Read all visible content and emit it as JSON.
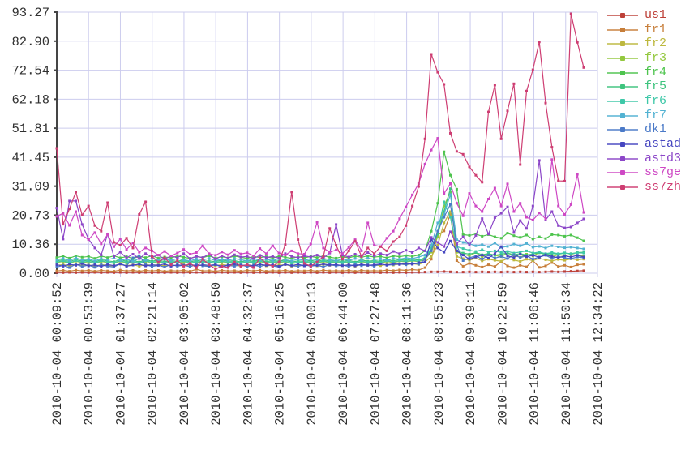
{
  "style": {
    "background": "#ffffff",
    "grid_color": "#ccccee",
    "axis_color": "#454545",
    "tick_text_color": "#303030"
  },
  "chart_data": {
    "type": "line",
    "title": "",
    "grid": true,
    "legend_position": "right-top",
    "n_points": 84,
    "x_axis": {
      "label": "",
      "tick_labels": [
        "2010-10-04 00:09:52",
        "2010-10-04 00:53:39",
        "2010-10-04 01:37:27",
        "2010-10-04 02:21:14",
        "2010-10-04 03:05:02",
        "2010-10-04 03:48:50",
        "2010-10-04 04:32:37",
        "2010-10-04 05:16:25",
        "2010-10-04 06:00:13",
        "2010-10-04 06:44:00",
        "2010-10-04 07:27:48",
        "2010-10-04 08:11:36",
        "2010-10-04 08:55:23",
        "2010-10-04 09:39:11",
        "2010-10-04 10:22:59",
        "2010-10-04 11:06:46",
        "2010-10-04 11:50:34",
        "2010-10-04 12:34:22"
      ]
    },
    "y_axis": {
      "label": "",
      "ylim": [
        0,
        93.27
      ],
      "tick_values": [
        0,
        10.36,
        20.73,
        31.09,
        41.45,
        51.81,
        62.18,
        72.54,
        82.9,
        93.27
      ],
      "tick_labels": [
        "0.00",
        "10.36",
        "20.73",
        "31.09",
        "41.45",
        "51.81",
        "62.18",
        "72.54",
        "82.90",
        "93.27"
      ]
    },
    "series": [
      {
        "name": "us1",
        "color": "#bd4038",
        "values": [
          0.3,
          0.2,
          0.3,
          0.2,
          0.3,
          0.2,
          0.3,
          0.2,
          0.3,
          0.2,
          0.3,
          0.2,
          0.3,
          0.2,
          0.3,
          0.2,
          0.3,
          0.2,
          0.3,
          0.2,
          0.3,
          0.2,
          0.3,
          0.2,
          0.3,
          0.2,
          0.3,
          0.2,
          0.3,
          0.2,
          0.3,
          0.2,
          0.3,
          0.2,
          0.3,
          0.2,
          0.3,
          0.2,
          0.3,
          0.2,
          0.3,
          0.2,
          0.3,
          0.2,
          0.3,
          0.2,
          0.3,
          0.2,
          0.3,
          0.2,
          0.3,
          0.2,
          0.3,
          0.2,
          0.3,
          0.2,
          0.3,
          0.3,
          0.4,
          0.5,
          0.5,
          0.6,
          0.5,
          0.4,
          0.4,
          0.5,
          0.4,
          0.5,
          0.4,
          0.5,
          0.4,
          0.5,
          0.4,
          0.5,
          0.4,
          0.5,
          0.4,
          0.5,
          0.6,
          0.5,
          0.6,
          0.7,
          0.8,
          0.9
        ]
      },
      {
        "name": "fr1",
        "color": "#c77e3a",
        "values": [
          0.8,
          1.0,
          0.7,
          1.1,
          0.8,
          1.0,
          0.7,
          1.0,
          0.8,
          0.7,
          1.1,
          0.8,
          1.0,
          0.7,
          1.0,
          0.8,
          1.0,
          0.7,
          0.9,
          0.8,
          1.0,
          0.7,
          1.4,
          0.8,
          0.9,
          0.7,
          1.0,
          0.8,
          0.9,
          0.7,
          1.0,
          0.8,
          1.1,
          0.7,
          0.9,
          0.8,
          1.0,
          0.7,
          0.9,
          0.8,
          1.0,
          0.7,
          1.1,
          0.8,
          0.9,
          0.8,
          1.0,
          0.7,
          1.0,
          0.8,
          0.9,
          0.8,
          1.1,
          0.9,
          1.2,
          1.0,
          1.3,
          1.1,
          2.0,
          5.0,
          13.6,
          15.1,
          21.0,
          4.5,
          2.5,
          3.5,
          2.8,
          2.2,
          3.0,
          2.4,
          4.2,
          2.6,
          2.0,
          2.8,
          2.3,
          4.5,
          2.1,
          2.6,
          3.8,
          2.4,
          2.8,
          2.2,
          3.0,
          3.2
        ]
      },
      {
        "name": "fr2",
        "color": "#bdb83e",
        "values": [
          2.8,
          3.1,
          2.6,
          3.2,
          2.7,
          3.0,
          2.5,
          3.1,
          2.8,
          2.6,
          3.2,
          2.7,
          3.0,
          2.5,
          3.1,
          2.8,
          3.0,
          2.6,
          2.9,
          2.7,
          3.1,
          2.5,
          3.0,
          2.7,
          2.9,
          2.6,
          3.1,
          2.8,
          2.9,
          2.5,
          3.0,
          2.7,
          3.2,
          2.6,
          2.9,
          2.8,
          3.1,
          2.5,
          2.8,
          2.7,
          3.0,
          2.6,
          3.2,
          2.8,
          2.9,
          2.7,
          3.0,
          2.5,
          3.1,
          2.8,
          2.9,
          2.7,
          3.2,
          2.9,
          3.3,
          3.0,
          3.4,
          3.1,
          4.0,
          6.0,
          10.0,
          18.0,
          22.0,
          6.0,
          5.2,
          4.6,
          5.4,
          4.4,
          5.0,
          4.6,
          4.3,
          5.2,
          4.7,
          4.2,
          5.0,
          4.5,
          5.3,
          4.8,
          4.4,
          4.9,
          4.6,
          5.1,
          4.8,
          5.0
        ]
      },
      {
        "name": "fr3",
        "color": "#93c83e",
        "values": [
          3.8,
          4.2,
          3.5,
          4.3,
          3.7,
          4.1,
          3.4,
          4.2,
          3.8,
          3.5,
          4.3,
          3.6,
          4.0,
          3.4,
          4.2,
          3.7,
          4.1,
          3.5,
          3.9,
          3.6,
          4.2,
          3.4,
          4.0,
          3.6,
          3.8,
          3.5,
          4.1,
          3.7,
          3.9,
          3.4,
          4.0,
          3.6,
          4.2,
          3.5,
          3.9,
          3.7,
          4.1,
          3.4,
          3.8,
          3.6,
          4.0,
          3.5,
          4.2,
          3.7,
          3.9,
          3.6,
          4.0,
          3.4,
          4.1,
          3.7,
          3.9,
          3.6,
          4.2,
          3.8,
          4.3,
          4.0,
          4.4,
          4.1,
          5.0,
          7.5,
          13.0,
          24.0,
          29.0,
          7.5,
          6.8,
          6.2,
          7.4,
          5.8,
          7.0,
          6.4,
          5.9,
          7.2,
          6.3,
          5.7,
          6.8,
          6.1,
          7.4,
          6.6,
          5.9,
          6.6,
          6.3,
          6.7,
          6.4,
          6.1
        ]
      },
      {
        "name": "fr4",
        "color": "#4ec44e",
        "values": [
          5.6,
          6.1,
          5.4,
          6.2,
          5.7,
          6.0,
          5.3,
          6.1,
          5.6,
          6.2,
          5.5,
          5.9,
          5.3,
          6.0,
          5.6,
          6.2,
          5.4,
          5.8,
          5.5,
          6.1,
          5.7,
          5.3,
          6.0,
          5.6,
          6.2,
          5.4,
          5.9,
          5.5,
          6.1,
          5.7,
          5.3,
          6.0,
          5.6,
          5.9,
          5.4,
          6.1,
          5.7,
          5.3,
          5.9,
          5.5,
          6.0,
          5.6,
          6.2,
          5.7,
          5.4,
          5.9,
          5.5,
          6.1,
          5.7,
          6.2,
          5.8,
          6.0,
          5.5,
          6.2,
          5.9,
          6.3,
          6.0,
          6.5,
          8.0,
          15.0,
          25.0,
          43.4,
          35.0,
          30.0,
          13.8,
          13.5,
          14.0,
          13.2,
          13.8,
          13.0,
          12.5,
          14.3,
          13.4,
          12.8,
          13.6,
          12.2,
          13.0,
          12.4,
          13.8,
          13.6,
          13.2,
          13.6,
          12.7,
          11.6
        ]
      },
      {
        "name": "fr5",
        "color": "#3ec47e",
        "values": [
          4.4,
          4.8,
          4.1,
          4.9,
          4.3,
          4.7,
          4.0,
          4.8,
          4.4,
          4.1,
          4.9,
          4.2,
          4.6,
          4.0,
          4.8,
          4.3,
          4.7,
          4.1,
          4.5,
          4.2,
          4.8,
          4.0,
          4.6,
          4.2,
          4.4,
          4.1,
          4.7,
          4.3,
          4.5,
          4.0,
          4.6,
          4.2,
          4.8,
          4.1,
          4.5,
          4.3,
          4.7,
          4.0,
          4.4,
          4.2,
          4.6,
          4.1,
          4.8,
          4.3,
          4.5,
          4.2,
          4.6,
          4.0,
          4.7,
          4.3,
          4.5,
          4.2,
          4.8,
          4.4,
          4.9,
          4.6,
          5.0,
          4.7,
          5.5,
          8.5,
          14.0,
          22.0,
          30.2,
          8.0,
          7.2,
          6.8,
          7.4,
          6.6,
          7.0,
          6.4,
          6.8,
          7.2,
          6.6,
          7.0,
          6.5,
          6.9,
          7.3,
          6.7,
          7.1,
          6.8,
          7.2,
          7.0,
          7.4,
          7.5
        ]
      },
      {
        "name": "fr6",
        "color": "#3ec8a8",
        "values": [
          4.0,
          4.4,
          3.7,
          4.5,
          3.9,
          4.3,
          3.6,
          4.4,
          4.0,
          3.7,
          4.5,
          3.8,
          4.2,
          3.6,
          4.4,
          3.9,
          4.3,
          3.7,
          4.1,
          3.8,
          4.4,
          3.6,
          4.2,
          3.8,
          4.0,
          3.7,
          4.3,
          3.9,
          4.1,
          3.6,
          4.2,
          3.8,
          4.4,
          3.7,
          4.1,
          3.9,
          4.3,
          3.6,
          4.0,
          3.8,
          4.2,
          3.7,
          4.4,
          3.9,
          4.1,
          3.8,
          4.2,
          3.6,
          4.3,
          3.9,
          4.1,
          3.8,
          4.4,
          4.0,
          4.5,
          4.2,
          4.6,
          4.3,
          5.5,
          9.0,
          15.0,
          25.5,
          20.0,
          9.5,
          8.8,
          8.2,
          7.8,
          8.4,
          7.6,
          8.0,
          7.4,
          7.8,
          7.2,
          7.6,
          8.0,
          7.2,
          7.6,
          7.0,
          7.4,
          7.0,
          7.3,
          6.9,
          7.3,
          7.2
        ]
      },
      {
        "name": "fr7",
        "color": "#52b2d2",
        "values": [
          4.8,
          5.3,
          4.5,
          5.5,
          4.7,
          5.1,
          4.4,
          5.2,
          4.8,
          5.4,
          4.6,
          5.0,
          4.3,
          5.2,
          4.7,
          5.3,
          4.5,
          5.0,
          4.6,
          5.2,
          4.8,
          4.4,
          5.1,
          4.7,
          5.3,
          4.5,
          5.0,
          4.6,
          5.2,
          4.8,
          4.4,
          5.1,
          4.7,
          5.0,
          4.5,
          5.2,
          4.8,
          4.4,
          5.0,
          4.6,
          5.1,
          4.7,
          5.3,
          4.8,
          4.5,
          5.0,
          4.6,
          5.2,
          4.8,
          5.4,
          4.9,
          5.1,
          4.6,
          5.3,
          5.0,
          5.5,
          5.2,
          5.8,
          6.5,
          10.0,
          18.0,
          21.0,
          28.1,
          12.0,
          11.0,
          10.5,
          9.8,
          10.2,
          9.5,
          10.8,
          9.2,
          9.6,
          10.4,
          9.8,
          10.6,
          9.3,
          9.6,
          9.0,
          9.8,
          9.4,
          9.1,
          9.3,
          9.0,
          8.7
        ]
      },
      {
        "name": "dk1",
        "color": "#4b7ac8",
        "values": [
          2.2,
          2.8,
          2.0,
          3.2,
          2.4,
          2.9,
          2.1,
          3.0,
          2.5,
          2.2,
          3.4,
          2.6,
          5.5,
          6.3,
          3.0,
          2.4,
          2.8,
          2.2,
          3.1,
          2.5,
          2.9,
          2.3,
          3.2,
          2.6,
          2.4,
          3.0,
          2.2,
          2.8,
          2.5,
          3.1,
          2.3,
          2.9,
          2.4,
          3.0,
          2.6,
          2.2,
          3.2,
          2.7,
          2.4,
          3.0,
          2.5,
          2.8,
          2.3,
          3.1,
          2.6,
          2.9,
          2.4,
          3.2,
          2.7,
          3.0,
          2.5,
          3.3,
          2.8,
          3.1,
          3.4,
          3.0,
          3.6,
          3.2,
          5.0,
          8.0,
          15.0,
          20.0,
          24.6,
          10.0,
          4.5,
          5.5,
          6.2,
          5.0,
          6.5,
          5.4,
          6.0,
          5.2,
          6.6,
          5.6,
          6.2,
          5.0,
          5.8,
          6.4,
          5.3,
          6.0,
          5.5,
          5.2,
          5.8,
          5.5
        ]
      },
      {
        "name": "astad",
        "color": "#4646c0",
        "values": [
          3.0,
          2.5,
          3.2,
          2.8,
          3.4,
          2.6,
          3.0,
          2.4,
          3.1,
          2.7,
          3.3,
          2.5,
          2.9,
          3.2,
          2.6,
          3.0,
          2.8,
          3.3,
          2.5,
          3.0,
          2.7,
          3.2,
          2.6,
          3.0,
          2.8,
          3.1,
          2.5,
          2.9,
          3.3,
          2.7,
          3.0,
          2.6,
          3.2,
          2.8,
          3.0,
          2.5,
          3.1,
          2.7,
          3.2,
          2.6,
          3.0,
          2.8,
          3.3,
          2.9,
          3.1,
          2.7,
          3.0,
          2.6,
          3.2,
          2.8,
          3.0,
          3.3,
          2.9,
          3.4,
          3.1,
          3.5,
          3.2,
          3.8,
          4.0,
          12.0,
          9.0,
          7.5,
          11.5,
          8.0,
          6.5,
          5.0,
          5.8,
          6.5,
          5.4,
          7.0,
          9.5,
          6.2,
          5.6,
          6.8,
          5.9,
          6.4,
          5.7,
          6.6,
          6.0,
          5.5,
          6.2,
          5.8,
          6.4,
          5.8
        ]
      },
      {
        "name": "astd3",
        "color": "#8c46c8",
        "values": [
          23.3,
          12.2,
          25.8,
          25.8,
          17.4,
          12.2,
          9.0,
          6.5,
          14.0,
          6.0,
          7.5,
          5.5,
          6.8,
          5.2,
          7.0,
          5.8,
          6.5,
          5.0,
          6.2,
          5.5,
          7.0,
          5.2,
          6.0,
          5.6,
          6.8,
          5.0,
          6.2,
          5.4,
          6.6,
          5.8,
          6.0,
          5.2,
          6.4,
          5.6,
          6.0,
          5.4,
          7.0,
          6.0,
          5.6,
          6.2,
          5.8,
          6.5,
          5.5,
          7.2,
          17.4,
          6.5,
          5.8,
          6.8,
          6.0,
          7.4,
          6.2,
          7.0,
          6.5,
          7.8,
          7.0,
          8.2,
          7.4,
          9.0,
          8.0,
          12.8,
          11.0,
          9.5,
          14.8,
          10.5,
          13.0,
          10.0,
          13.5,
          19.5,
          14.0,
          19.8,
          21.4,
          23.7,
          14.5,
          18.8,
          16.0,
          24.0,
          40.3,
          19.0,
          22.0,
          17.0,
          16.2,
          16.5,
          18.0,
          19.4
        ]
      },
      {
        "name": "ss7ge",
        "color": "#ce48c4",
        "values": [
          20.3,
          21.4,
          17.1,
          22.0,
          13.6,
          12.0,
          14.5,
          10.5,
          13.8,
          9.5,
          12.2,
          8.5,
          10.8,
          7.5,
          9.0,
          8.0,
          6.5,
          7.8,
          6.2,
          7.2,
          8.5,
          6.8,
          7.4,
          9.8,
          7.0,
          6.4,
          7.6,
          6.6,
          8.2,
          6.9,
          7.3,
          6.2,
          8.8,
          7.0,
          9.8,
          7.2,
          6.5,
          8.0,
          7.0,
          6.8,
          10.5,
          18.2,
          9.0,
          7.5,
          8.3,
          7.0,
          9.2,
          12.0,
          8.0,
          18.0,
          10.0,
          9.5,
          12.5,
          15.0,
          19.5,
          23.7,
          28.0,
          32.0,
          39.0,
          44.0,
          48.2,
          28.5,
          32.0,
          25.0,
          20.5,
          28.5,
          24.0,
          22.0,
          26.5,
          30.4,
          24.0,
          31.9,
          22.0,
          25.0,
          20.0,
          19.0,
          21.5,
          19.5,
          40.6,
          24.0,
          21.0,
          24.5,
          35.3,
          21.7
        ]
      },
      {
        "name": "ss7zh",
        "color": "#ce3d72",
        "values": [
          44.6,
          17.5,
          23.0,
          29.0,
          20.8,
          24.0,
          17.0,
          15.0,
          25.2,
          11.0,
          10.0,
          12.5,
          9.0,
          21.0,
          25.5,
          6.0,
          4.0,
          5.5,
          3.0,
          4.5,
          2.5,
          3.5,
          2.0,
          5.0,
          3.0,
          1.5,
          2.5,
          2.0,
          4.0,
          2.5,
          3.0,
          2.0,
          5.5,
          3.5,
          2.5,
          4.0,
          10.2,
          29.0,
          12.0,
          3.5,
          2.5,
          4.0,
          6.0,
          16.0,
          10.0,
          5.0,
          8.0,
          11.5,
          6.0,
          9.0,
          7.0,
          9.5,
          8.0,
          11.3,
          13.0,
          17.0,
          24.0,
          31.0,
          48.0,
          78.2,
          71.8,
          67.5,
          50.0,
          43.5,
          42.5,
          38.0,
          35.0,
          32.5,
          57.6,
          67.2,
          48.0,
          58.0,
          67.7,
          38.8,
          65.1,
          72.7,
          82.6,
          60.8,
          45.0,
          33.0,
          32.9,
          92.7,
          82.5,
          73.5
        ]
      }
    ]
  }
}
